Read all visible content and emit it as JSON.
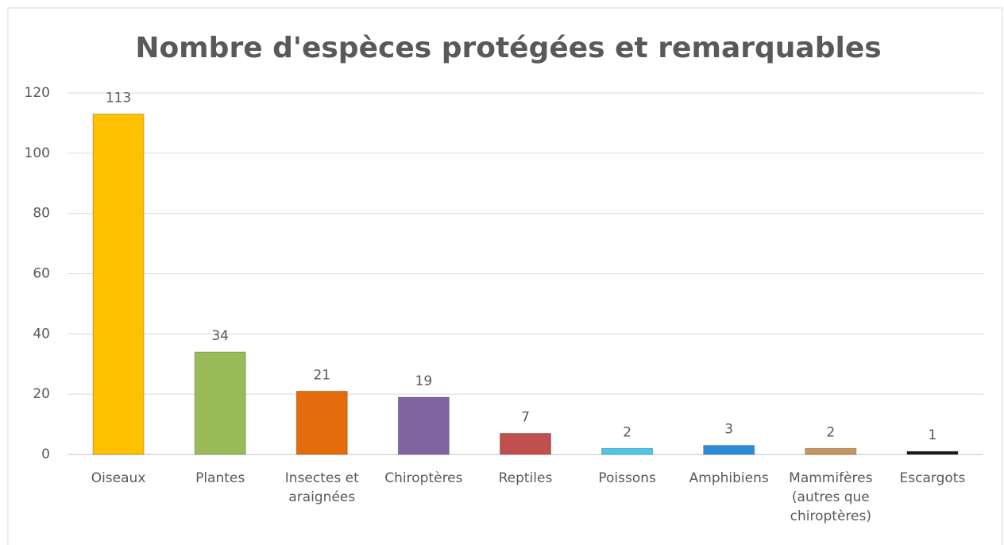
{
  "chart_data": {
    "type": "bar",
    "title": "Nombre d'espèces protégées et remarquables",
    "categories": [
      "Oiseaux",
      "Plantes",
      "Insectes et araignées",
      "Chiroptères",
      "Reptiles",
      "Poissons",
      "Amphibiens",
      "Mammifères (autres que chiroptères)",
      "Escargots"
    ],
    "values": [
      113,
      34,
      21,
      19,
      7,
      2,
      3,
      2,
      1
    ],
    "colors": [
      "#ffc000",
      "#9bbb59",
      "#e46c0a",
      "#8064a2",
      "#c0504d",
      "#4bc8e8",
      "#2e8bd8",
      "#c9955c",
      "#1a1a1a"
    ],
    "ylim": [
      0,
      120
    ],
    "yticks": [
      0,
      20,
      40,
      60,
      80,
      100,
      120
    ],
    "grid": true
  }
}
